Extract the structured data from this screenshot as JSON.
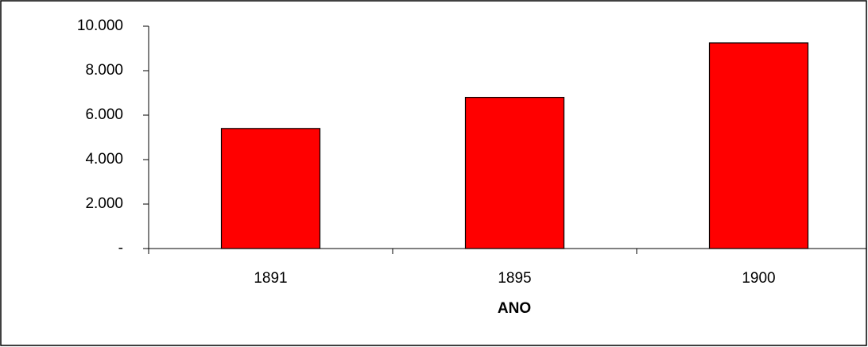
{
  "chart_data": {
    "type": "bar",
    "x_label": "ANO",
    "categories": [
      "1891",
      "1895",
      "1900"
    ],
    "values": [
      5400,
      6800,
      9250
    ],
    "color": "#ff0000",
    "ylim": [
      0,
      10000
    ],
    "yticks": [
      {
        "value": 0,
        "label": "-"
      },
      {
        "value": 2000,
        "label": "2.000"
      },
      {
        "value": 4000,
        "label": "4.000"
      },
      {
        "value": 6000,
        "label": "6.000"
      },
      {
        "value": 8000,
        "label": "8.000"
      },
      {
        "value": 10000,
        "label": "10.000"
      }
    ],
    "grid": false
  }
}
